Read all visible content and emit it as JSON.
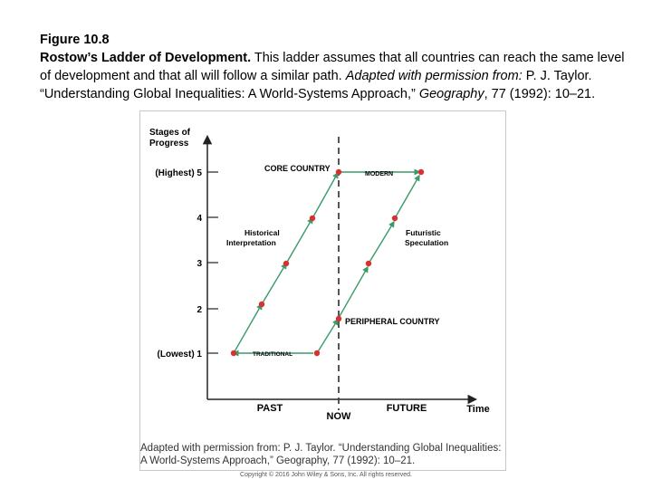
{
  "caption": {
    "figure_number": "Figure 10.8",
    "title": "Rostow’s Ladder of Development.",
    "body": " This ladder assumes that all countries can reach the same level of development and that all will follow a similar path. ",
    "adapted": "Adapted with permission from:",
    "author": " P. J. Taylor. “Understanding Global Inequalities: A World-Systems Approach,” ",
    "journal": "Geography",
    "citation": ", 77 (1992): 10–21."
  },
  "diagram": {
    "y_axis_title_line1": "Stages of",
    "y_axis_title_line2": "Progress",
    "y_ticks": [
      {
        "label": "(Highest) 5",
        "value": 5
      },
      {
        "label": "4",
        "value": 4
      },
      {
        "label": "3",
        "value": 3
      },
      {
        "label": "2",
        "value": 2
      },
      {
        "label": "(Lowest) 1",
        "value": 1
      }
    ],
    "x_labels": {
      "past": "PAST",
      "now": "NOW",
      "future": "FUTURE",
      "axis_title": "Time"
    },
    "labels": {
      "core_country": "CORE COUNTRY",
      "modern": "MODERN",
      "historical_line1": "Historical",
      "historical_line2": "Interpretation",
      "futuristic_line1": "Futuristic",
      "futuristic_line2": "Speculation",
      "peripheral_country": "PERIPHERAL COUNTRY",
      "traditional": "TRADITIONAL"
    },
    "colors": {
      "path": "#3a9a6a",
      "point": "#d93030",
      "axis": "#222222"
    }
  },
  "credit_line1": "Adapted with permission from: P. J. Taylor. “Understanding Global Inequalities:",
  "credit_line2": "A World-Systems Approach,” Geography, 77 (1992): 10–21.",
  "copyright": "Copyright © 2016 John Wiley & Sons, Inc. All rights reserved."
}
